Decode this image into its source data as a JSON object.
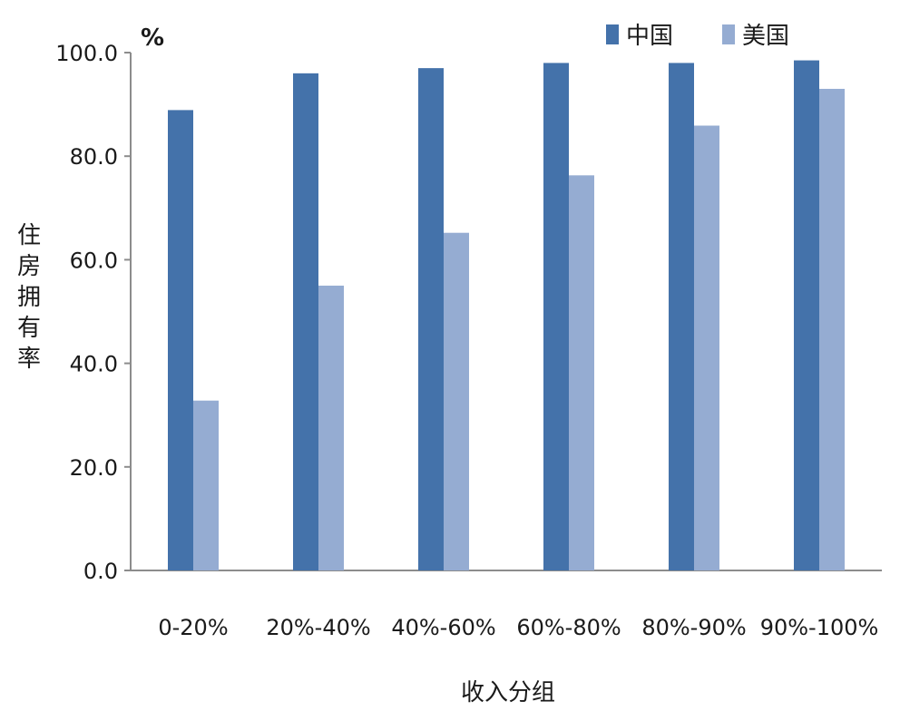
{
  "chart_data": {
    "type": "bar",
    "unit_label": "%",
    "ylabel": "住房拥有率",
    "xlabel": "收入分组",
    "ylim": [
      0,
      100
    ],
    "yticks": [
      0,
      20,
      40,
      60,
      80,
      100
    ],
    "ytick_labels": [
      "0.0",
      "20.0",
      "40.0",
      "60.0",
      "80.0",
      "100.0"
    ],
    "categories": [
      "0-20%",
      "20%-40%",
      "40%-60%",
      "60%-80%",
      "80%-90%",
      "90%-100%"
    ],
    "series": [
      {
        "name": "中国",
        "color": "#4472aa",
        "values": [
          88.9,
          96.0,
          97.0,
          98.0,
          98.0,
          98.5
        ]
      },
      {
        "name": "美国",
        "color": "#95acd2",
        "values": [
          32.8,
          55.0,
          65.2,
          76.3,
          85.9,
          93.0
        ]
      }
    ],
    "legend_position": "top-right",
    "grid": false
  }
}
